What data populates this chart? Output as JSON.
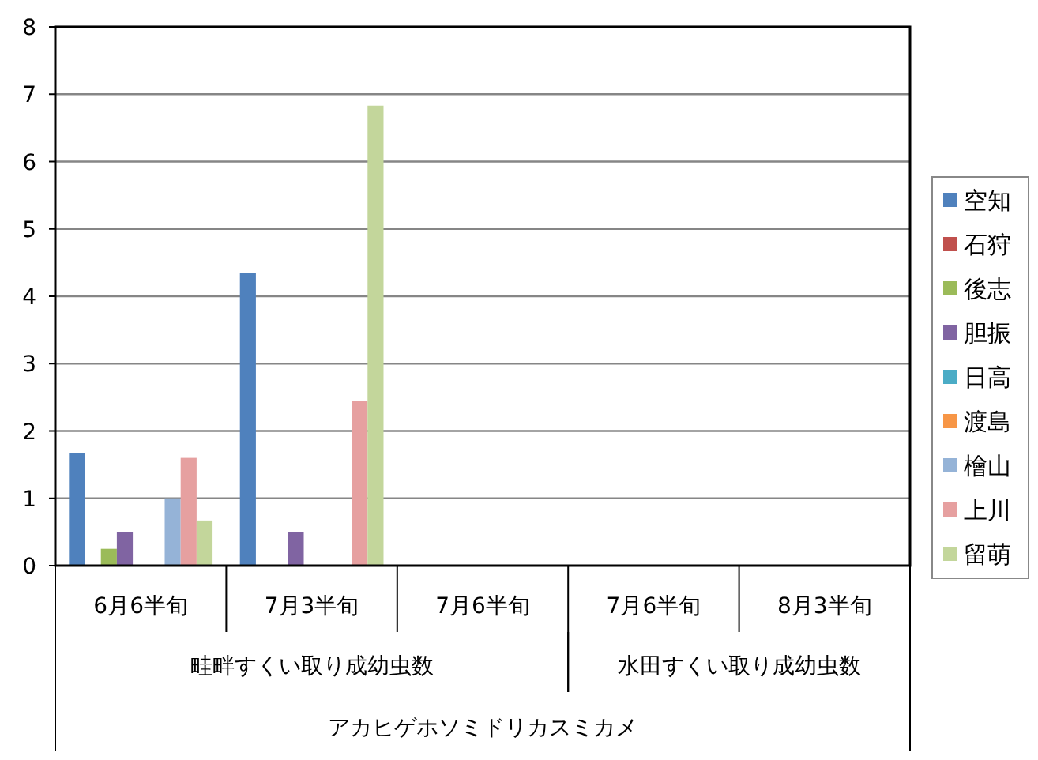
{
  "chart_data": {
    "type": "bar",
    "categories": [
      "6月6半旬",
      "7月3半旬",
      "7月6半旬",
      "7月6半旬",
      "8月3半旬"
    ],
    "series": [
      {
        "name": "空知",
        "color": "#4f81bd",
        "values": [
          1.67,
          4.35,
          0,
          0,
          0
        ]
      },
      {
        "name": "石狩",
        "color": "#c0504d",
        "values": [
          0,
          0,
          0,
          0,
          0
        ]
      },
      {
        "name": "後志",
        "color": "#9bbb59",
        "values": [
          0.25,
          0,
          0,
          0,
          0
        ]
      },
      {
        "name": "胆振",
        "color": "#8064a2",
        "values": [
          0.5,
          0.5,
          0,
          0,
          0
        ]
      },
      {
        "name": "日高",
        "color": "#4bacc6",
        "values": [
          0,
          0,
          0,
          0,
          0
        ]
      },
      {
        "name": "渡島",
        "color": "#f79646",
        "values": [
          0,
          0,
          0,
          0,
          0
        ]
      },
      {
        "name": "檜山",
        "color": "#95b3d7",
        "values": [
          1.0,
          0,
          0,
          0,
          0
        ]
      },
      {
        "name": "上川",
        "color": "#e6a0a0",
        "values": [
          1.6,
          2.44,
          0,
          0,
          0
        ]
      },
      {
        "name": "留萌",
        "color": "#c3d69b",
        "values": [
          0.67,
          6.83,
          0,
          0,
          0
        ]
      }
    ],
    "annotations": [
      "畦畔すくい取り成幼虫数",
      "水田すくい取り成幼虫数"
    ],
    "xlabel": "アカヒゲホソミドリカスミカメ",
    "ylim": [
      0,
      8
    ],
    "yticks": [
      0,
      1,
      2,
      3,
      4,
      5,
      6,
      7,
      8
    ],
    "grid": "y",
    "legend": "right"
  }
}
